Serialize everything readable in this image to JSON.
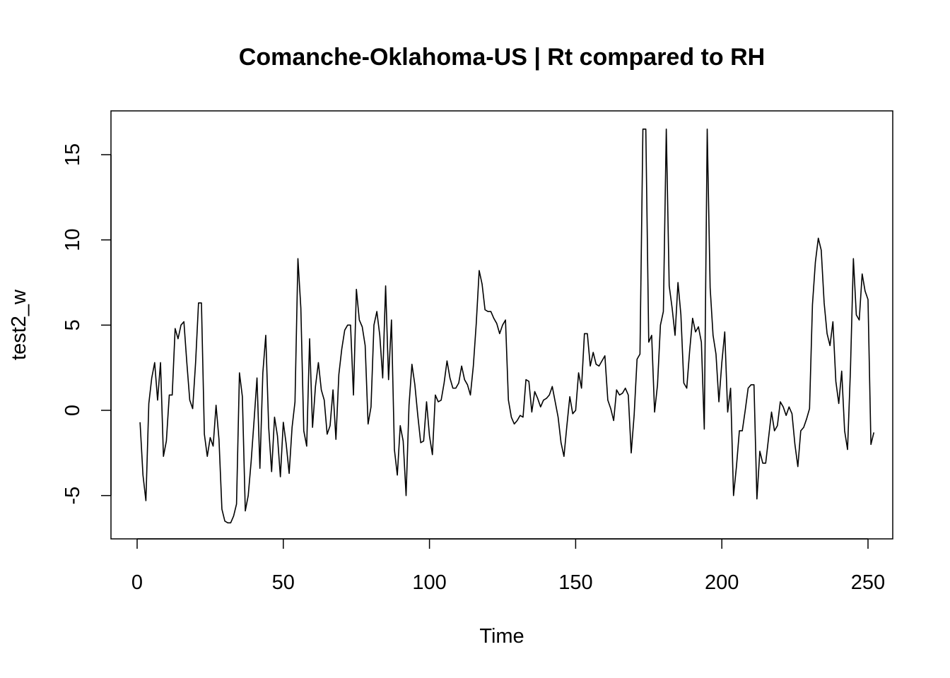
{
  "chart_data": {
    "type": "line",
    "title": "Comanche-Oklahoma-US | Rt compared to RH",
    "xlabel": "Time",
    "ylabel": "test2_w",
    "xlim": [
      1,
      248
    ],
    "ylim": [
      -6.6,
      16.6
    ],
    "grid": false,
    "legend": "none",
    "line_color": "#000000",
    "x_ticks": [
      0,
      50,
      100,
      150,
      200,
      250
    ],
    "y_ticks": [
      -5,
      0,
      5,
      10,
      15
    ],
    "x_tick_labels": [
      "0",
      "50",
      "100",
      "150",
      "200",
      "250"
    ],
    "y_tick_labels": [
      "-5",
      "0",
      "5",
      "10",
      "15"
    ],
    "series": [
      {
        "x_start": 1,
        "x_step": 1,
        "values": [
          -0.7,
          -3.8,
          -5.3,
          0.4,
          1.9,
          2.8,
          0.6,
          2.8,
          -2.7,
          -1.8,
          0.9,
          0.9,
          4.8,
          4.2,
          5.0,
          5.2,
          2.8,
          0.6,
          0.1,
          2.8,
          6.3,
          6.3,
          -1.4,
          -2.7,
          -1.6,
          -2.1,
          0.3,
          -1.7,
          -5.8,
          -6.5,
          -6.6,
          -6.6,
          -6.2,
          -5.5,
          2.2,
          0.8,
          -5.9,
          -5.0,
          -3.0,
          -0.6,
          1.9,
          -3.4,
          2.2,
          4.4,
          -1.0,
          -3.6,
          -0.4,
          -1.5,
          -3.9,
          -0.7,
          -2.0,
          -3.7,
          -1.0,
          0.5,
          8.9,
          6.0,
          -1.2,
          -2.1,
          4.2,
          -1.0,
          1.4,
          2.8,
          1.2,
          0.6,
          -1.4,
          -0.9,
          1.2,
          -1.7,
          2.1,
          3.6,
          4.7,
          5.0,
          5.0,
          0.9,
          7.1,
          5.3,
          4.9,
          3.8,
          -0.8,
          0.2,
          5.0,
          5.8,
          4.4,
          1.9,
          7.3,
          1.8,
          5.3,
          -2.3,
          -3.8,
          -0.9,
          -1.8,
          -5.0,
          0.3,
          2.7,
          1.5,
          -0.3,
          -1.9,
          -1.8,
          0.5,
          -1.5,
          -2.6,
          0.9,
          0.5,
          0.6,
          1.6,
          2.9,
          1.9,
          1.3,
          1.3,
          1.6,
          2.6,
          1.8,
          1.5,
          0.9,
          2.6,
          5.1,
          8.2,
          7.4,
          5.9,
          5.8,
          5.8,
          5.4,
          5.1,
          4.5,
          5.0,
          5.3,
          0.6,
          -0.4,
          -0.8,
          -0.6,
          -0.3,
          -0.4,
          1.8,
          1.7,
          -0.1,
          1.1,
          0.7,
          0.2,
          0.6,
          0.7,
          0.9,
          1.4,
          0.5,
          -0.4,
          -1.9,
          -2.7,
          -0.9,
          0.8,
          -0.2,
          0.0,
          2.2,
          1.3,
          4.5,
          4.5,
          2.6,
          3.4,
          2.7,
          2.6,
          2.9,
          3.2,
          0.6,
          0.1,
          -0.6,
          1.2,
          0.9,
          1.0,
          1.3,
          0.9,
          -2.5,
          -0.3,
          3.0,
          3.3,
          16.5,
          16.5,
          4.0,
          4.4,
          -0.1,
          1.5,
          5.0,
          5.8,
          16.5,
          7.3,
          6.0,
          4.4,
          7.5,
          5.6,
          1.6,
          1.3,
          3.5,
          5.4,
          4.6,
          4.9,
          4.0,
          -1.1,
          16.5,
          7.2,
          4.4,
          3.3,
          0.5,
          2.8,
          4.6,
          -0.1,
          1.3,
          -5.0,
          -3.3,
          -1.2,
          -1.2,
          0.0,
          1.3,
          1.5,
          1.5,
          -5.2,
          -2.4,
          -3.1,
          -3.1,
          -1.6,
          -0.1,
          -1.2,
          -0.9,
          0.5,
          0.2,
          -0.3,
          0.2,
          -0.2,
          -2.0,
          -3.3,
          -1.2,
          -1.0,
          -0.5,
          0.1,
          6.2,
          8.7,
          10.1,
          9.4,
          6.3,
          4.5,
          3.8,
          5.2,
          1.7,
          0.4,
          2.3,
          -1.2,
          -2.3,
          2.4,
          8.9,
          5.6,
          5.3,
          8.0,
          7.0,
          6.5,
          -2.0,
          -1.3
        ]
      }
    ]
  }
}
